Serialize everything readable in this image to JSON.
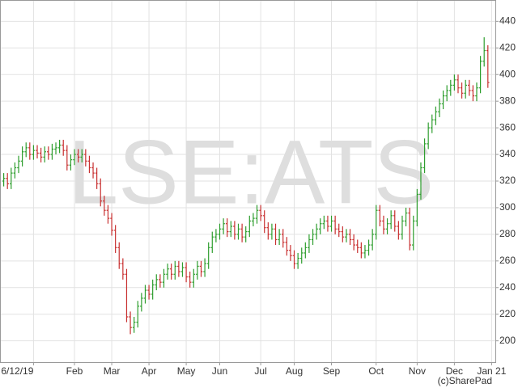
{
  "chart_data": {
    "type": "ohlc",
    "watermark": "LSE:ATS",
    "credit": "(c)SharePad",
    "up_color": "#2e9e2e",
    "down_color": "#c83030",
    "grid": true,
    "xlim": [
      -9,
      124
    ],
    "ylim": [
      184,
      456
    ],
    "yticks": [
      200,
      220,
      240,
      260,
      280,
      300,
      320,
      340,
      360,
      380,
      400,
      420,
      440
    ],
    "xticks": [
      {
        "value": 0,
        "label": "6/12/19"
      },
      {
        "value": 11,
        "label": "Feb"
      },
      {
        "value": 21,
        "label": "Mar"
      },
      {
        "value": 31,
        "label": "Apr"
      },
      {
        "value": 41,
        "label": "May"
      },
      {
        "value": 50,
        "label": "Jun"
      },
      {
        "value": 61,
        "label": "Jul"
      },
      {
        "value": 70,
        "label": "Aug"
      },
      {
        "value": 80,
        "label": "Sep"
      },
      {
        "value": 92,
        "label": "Oct"
      },
      {
        "value": 103,
        "label": "Nov"
      },
      {
        "value": 113,
        "label": "Dec"
      },
      {
        "value": 123,
        "label": "Jan 21"
      }
    ],
    "x": [
      -8,
      -7,
      -6,
      -5,
      -4,
      -3,
      -2,
      -1,
      0,
      1,
      2,
      3,
      4,
      5,
      6,
      7,
      8,
      9,
      10,
      11,
      12,
      13,
      14,
      15,
      16,
      17,
      18,
      19,
      20,
      21,
      22,
      23,
      24,
      25,
      26,
      27,
      28,
      29,
      30,
      31,
      32,
      33,
      34,
      35,
      36,
      37,
      38,
      39,
      40,
      41,
      42,
      43,
      44,
      45,
      46,
      47,
      48,
      49,
      50,
      51,
      52,
      53,
      54,
      55,
      56,
      57,
      58,
      59,
      60,
      61,
      62,
      63,
      64,
      65,
      66,
      67,
      68,
      69,
      70,
      71,
      72,
      73,
      74,
      75,
      76,
      77,
      78,
      79,
      80,
      81,
      82,
      83,
      84,
      85,
      86,
      87,
      88,
      89,
      90,
      91,
      92,
      93,
      94,
      95,
      96,
      97,
      98,
      99,
      100,
      101,
      102,
      103,
      104,
      105,
      106,
      107,
      108,
      109,
      110,
      111,
      112,
      113,
      114,
      115,
      116,
      117,
      118,
      119,
      120,
      121,
      122
    ],
    "open": [
      320,
      322,
      318,
      326,
      330,
      335,
      342,
      345,
      340,
      343,
      341,
      338,
      342,
      340,
      344,
      345,
      347,
      343,
      332,
      336,
      340,
      338,
      340,
      335,
      330,
      326,
      318,
      305,
      298,
      292,
      283,
      270,
      258,
      250,
      218,
      210,
      214,
      226,
      232,
      238,
      235,
      242,
      246,
      244,
      250,
      254,
      250,
      256,
      252,
      255,
      248,
      244,
      250,
      256,
      252,
      258,
      270,
      278,
      280,
      284,
      288,
      282,
      286,
      280,
      284,
      278,
      282,
      290,
      292,
      298,
      294,
      285,
      280,
      284,
      276,
      280,
      274,
      268,
      264,
      258,
      262,
      266,
      270,
      276,
      280,
      284,
      288,
      290,
      286,
      290,
      284,
      282,
      278,
      280,
      276,
      272,
      270,
      266,
      268,
      272,
      280,
      298,
      290,
      284,
      288,
      294,
      286,
      280,
      290,
      296,
      272,
      290,
      310,
      330,
      348,
      360,
      366,
      372,
      378,
      384,
      388,
      392,
      396,
      390,
      386,
      392,
      388,
      384,
      390,
      410,
      418
    ],
    "high": [
      326,
      326,
      330,
      334,
      339,
      346,
      349,
      349,
      347,
      347,
      345,
      346,
      346,
      348,
      349,
      351,
      351,
      347,
      340,
      344,
      344,
      344,
      344,
      339,
      334,
      330,
      322,
      309,
      302,
      296,
      287,
      274,
      262,
      254,
      222,
      218,
      230,
      236,
      242,
      242,
      246,
      250,
      250,
      254,
      258,
      258,
      260,
      260,
      259,
      259,
      252,
      254,
      260,
      260,
      262,
      274,
      282,
      284,
      288,
      292,
      292,
      290,
      290,
      288,
      288,
      286,
      294,
      296,
      302,
      302,
      298,
      289,
      288,
      288,
      284,
      284,
      278,
      272,
      268,
      266,
      270,
      274,
      280,
      284,
      288,
      292,
      294,
      294,
      294,
      294,
      288,
      286,
      284,
      284,
      280,
      276,
      274,
      272,
      276,
      284,
      302,
      302,
      294,
      292,
      298,
      298,
      290,
      294,
      300,
      300,
      294,
      314,
      334,
      352,
      364,
      370,
      376,
      382,
      388,
      392,
      396,
      400,
      400,
      394,
      396,
      396,
      392,
      394,
      414,
      428,
      422
    ],
    "low": [
      316,
      314,
      314,
      322,
      326,
      331,
      338,
      336,
      336,
      337,
      334,
      334,
      336,
      336,
      340,
      341,
      339,
      328,
      328,
      332,
      334,
      334,
      331,
      326,
      322,
      314,
      301,
      294,
      288,
      279,
      266,
      254,
      246,
      214,
      205,
      206,
      210,
      222,
      228,
      231,
      231,
      238,
      240,
      240,
      246,
      246,
      246,
      248,
      248,
      244,
      240,
      240,
      246,
      248,
      248,
      254,
      266,
      274,
      276,
      280,
      278,
      278,
      276,
      276,
      274,
      274,
      278,
      286,
      288,
      290,
      281,
      276,
      276,
      272,
      272,
      270,
      264,
      260,
      254,
      254,
      258,
      262,
      266,
      272,
      276,
      280,
      284,
      282,
      282,
      280,
      278,
      274,
      274,
      272,
      268,
      266,
      262,
      262,
      264,
      268,
      276,
      286,
      280,
      280,
      284,
      282,
      276,
      276,
      286,
      268,
      268,
      286,
      306,
      326,
      344,
      356,
      362,
      368,
      374,
      380,
      384,
      388,
      386,
      382,
      382,
      384,
      380,
      380,
      386,
      406,
      390
    ],
    "close": [
      322,
      318,
      326,
      330,
      335,
      342,
      345,
      340,
      343,
      341,
      338,
      342,
      340,
      344,
      345,
      347,
      343,
      332,
      336,
      340,
      338,
      340,
      335,
      330,
      326,
      318,
      305,
      298,
      292,
      283,
      270,
      258,
      250,
      218,
      210,
      214,
      226,
      232,
      238,
      235,
      242,
      246,
      244,
      250,
      254,
      250,
      256,
      252,
      255,
      248,
      244,
      250,
      256,
      252,
      258,
      270,
      278,
      280,
      284,
      288,
      282,
      286,
      280,
      284,
      278,
      282,
      290,
      292,
      298,
      294,
      285,
      280,
      284,
      276,
      280,
      274,
      268,
      264,
      258,
      262,
      266,
      270,
      276,
      280,
      284,
      288,
      290,
      286,
      290,
      284,
      282,
      278,
      280,
      276,
      272,
      270,
      266,
      268,
      272,
      280,
      298,
      290,
      284,
      288,
      294,
      286,
      280,
      290,
      296,
      272,
      290,
      310,
      330,
      348,
      360,
      366,
      372,
      378,
      384,
      388,
      392,
      396,
      390,
      386,
      392,
      388,
      384,
      390,
      410,
      418,
      394
    ]
  }
}
